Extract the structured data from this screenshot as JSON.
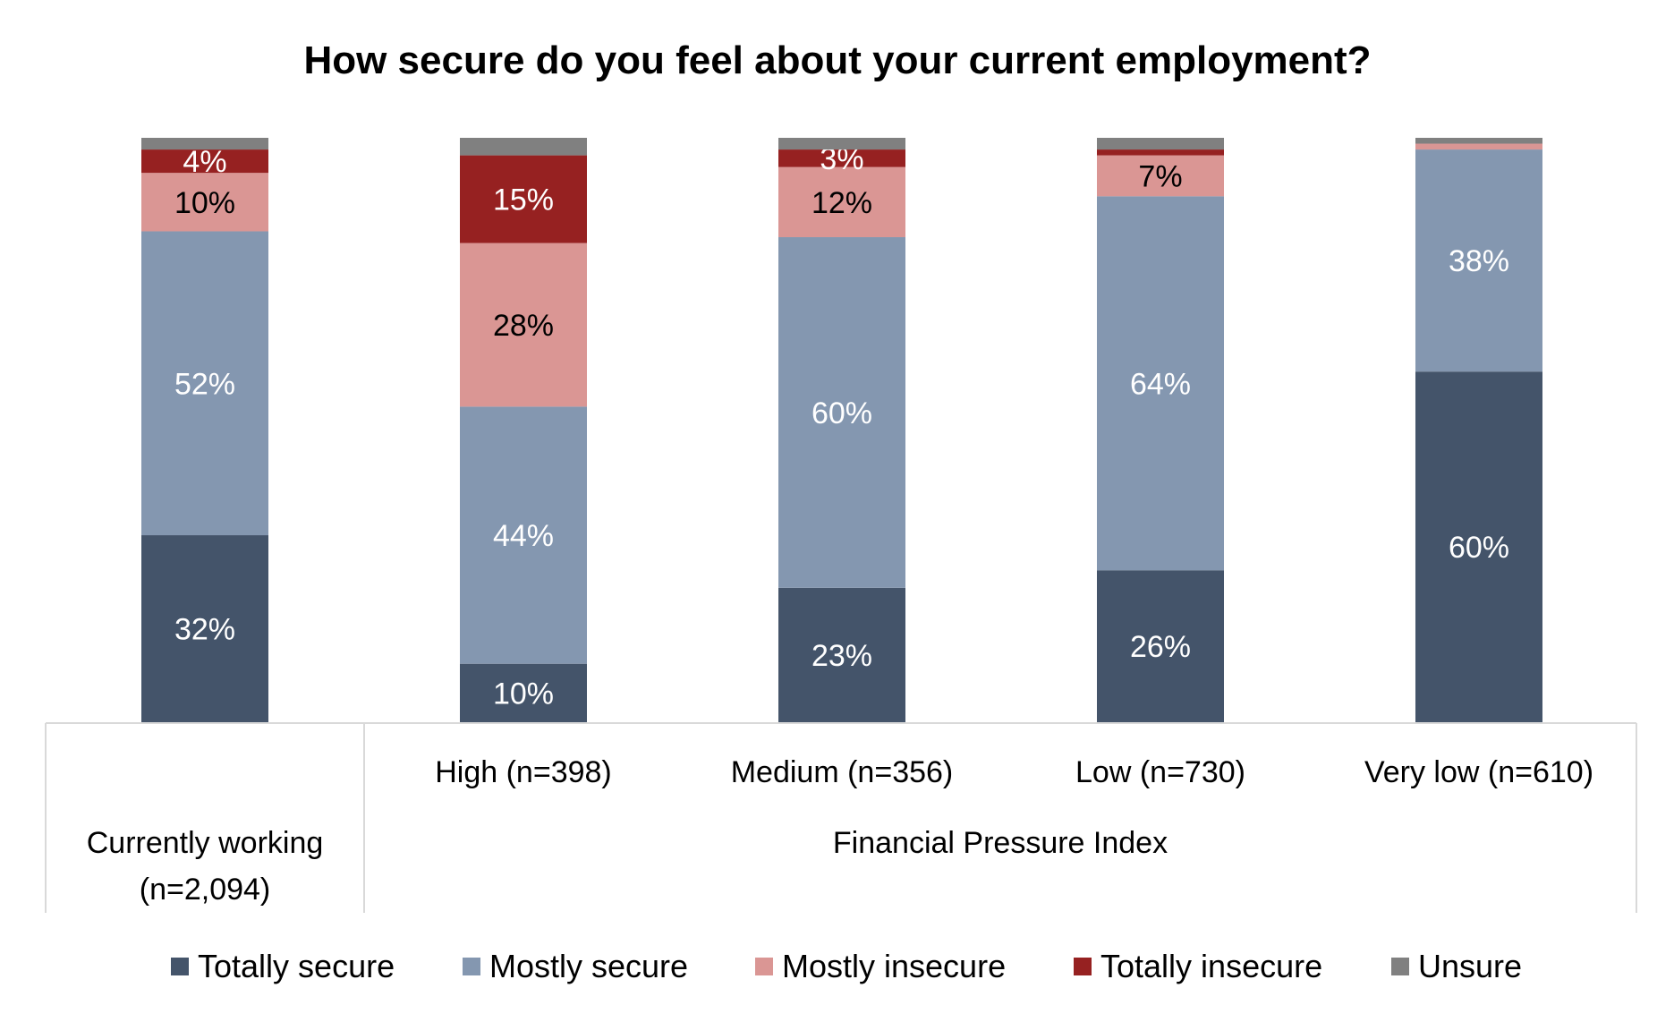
{
  "chart_data": {
    "type": "bar",
    "stacked": true,
    "title": "How secure do you feel about your current employment?",
    "ylim": [
      0,
      100
    ],
    "grid": false,
    "legend_position": "bottom",
    "categories": [
      "Currently working (n=2,094)",
      "High (n=398)",
      "Medium (n=356)",
      "Low (n=730)",
      "Very low (n=610)"
    ],
    "category_lines": [
      [
        "Currently working",
        "(n=2,094)"
      ],
      [
        "High (n=398)"
      ],
      [
        "Medium (n=356)"
      ],
      [
        "Low (n=730)"
      ],
      [
        "Very low (n=610)"
      ]
    ],
    "group_label": "Financial Pressure Index",
    "series": [
      {
        "name": "Totally secure",
        "color": "#44546A",
        "label_color": "#FFFFFF",
        "values": [
          32,
          10,
          23,
          26,
          60
        ],
        "labels": [
          "32%",
          "10%",
          "23%",
          "26%",
          "60%"
        ]
      },
      {
        "name": "Mostly secure",
        "color": "#8497B0",
        "label_color": "#FFFFFF",
        "values": [
          52,
          44,
          60,
          64,
          38
        ],
        "labels": [
          "52%",
          "44%",
          "60%",
          "64%",
          "38%"
        ]
      },
      {
        "name": "Mostly insecure",
        "color": "#DA9694",
        "label_color": "#000000",
        "values": [
          10,
          28,
          12,
          7,
          1
        ],
        "labels": [
          "10%",
          "28%",
          "12%",
          "7%",
          ""
        ]
      },
      {
        "name": "Totally insecure",
        "color": "#962121",
        "label_color": "#FFFFFF",
        "values": [
          4,
          15,
          3,
          1,
          0
        ],
        "labels": [
          "4%",
          "15%",
          "3%",
          "",
          ""
        ]
      },
      {
        "name": "Unsure",
        "color": "#808080",
        "label_color": "#FFFFFF",
        "values": [
          2,
          3,
          2,
          2,
          1
        ],
        "labels": [
          "",
          "",
          "",
          "",
          ""
        ]
      }
    ]
  }
}
